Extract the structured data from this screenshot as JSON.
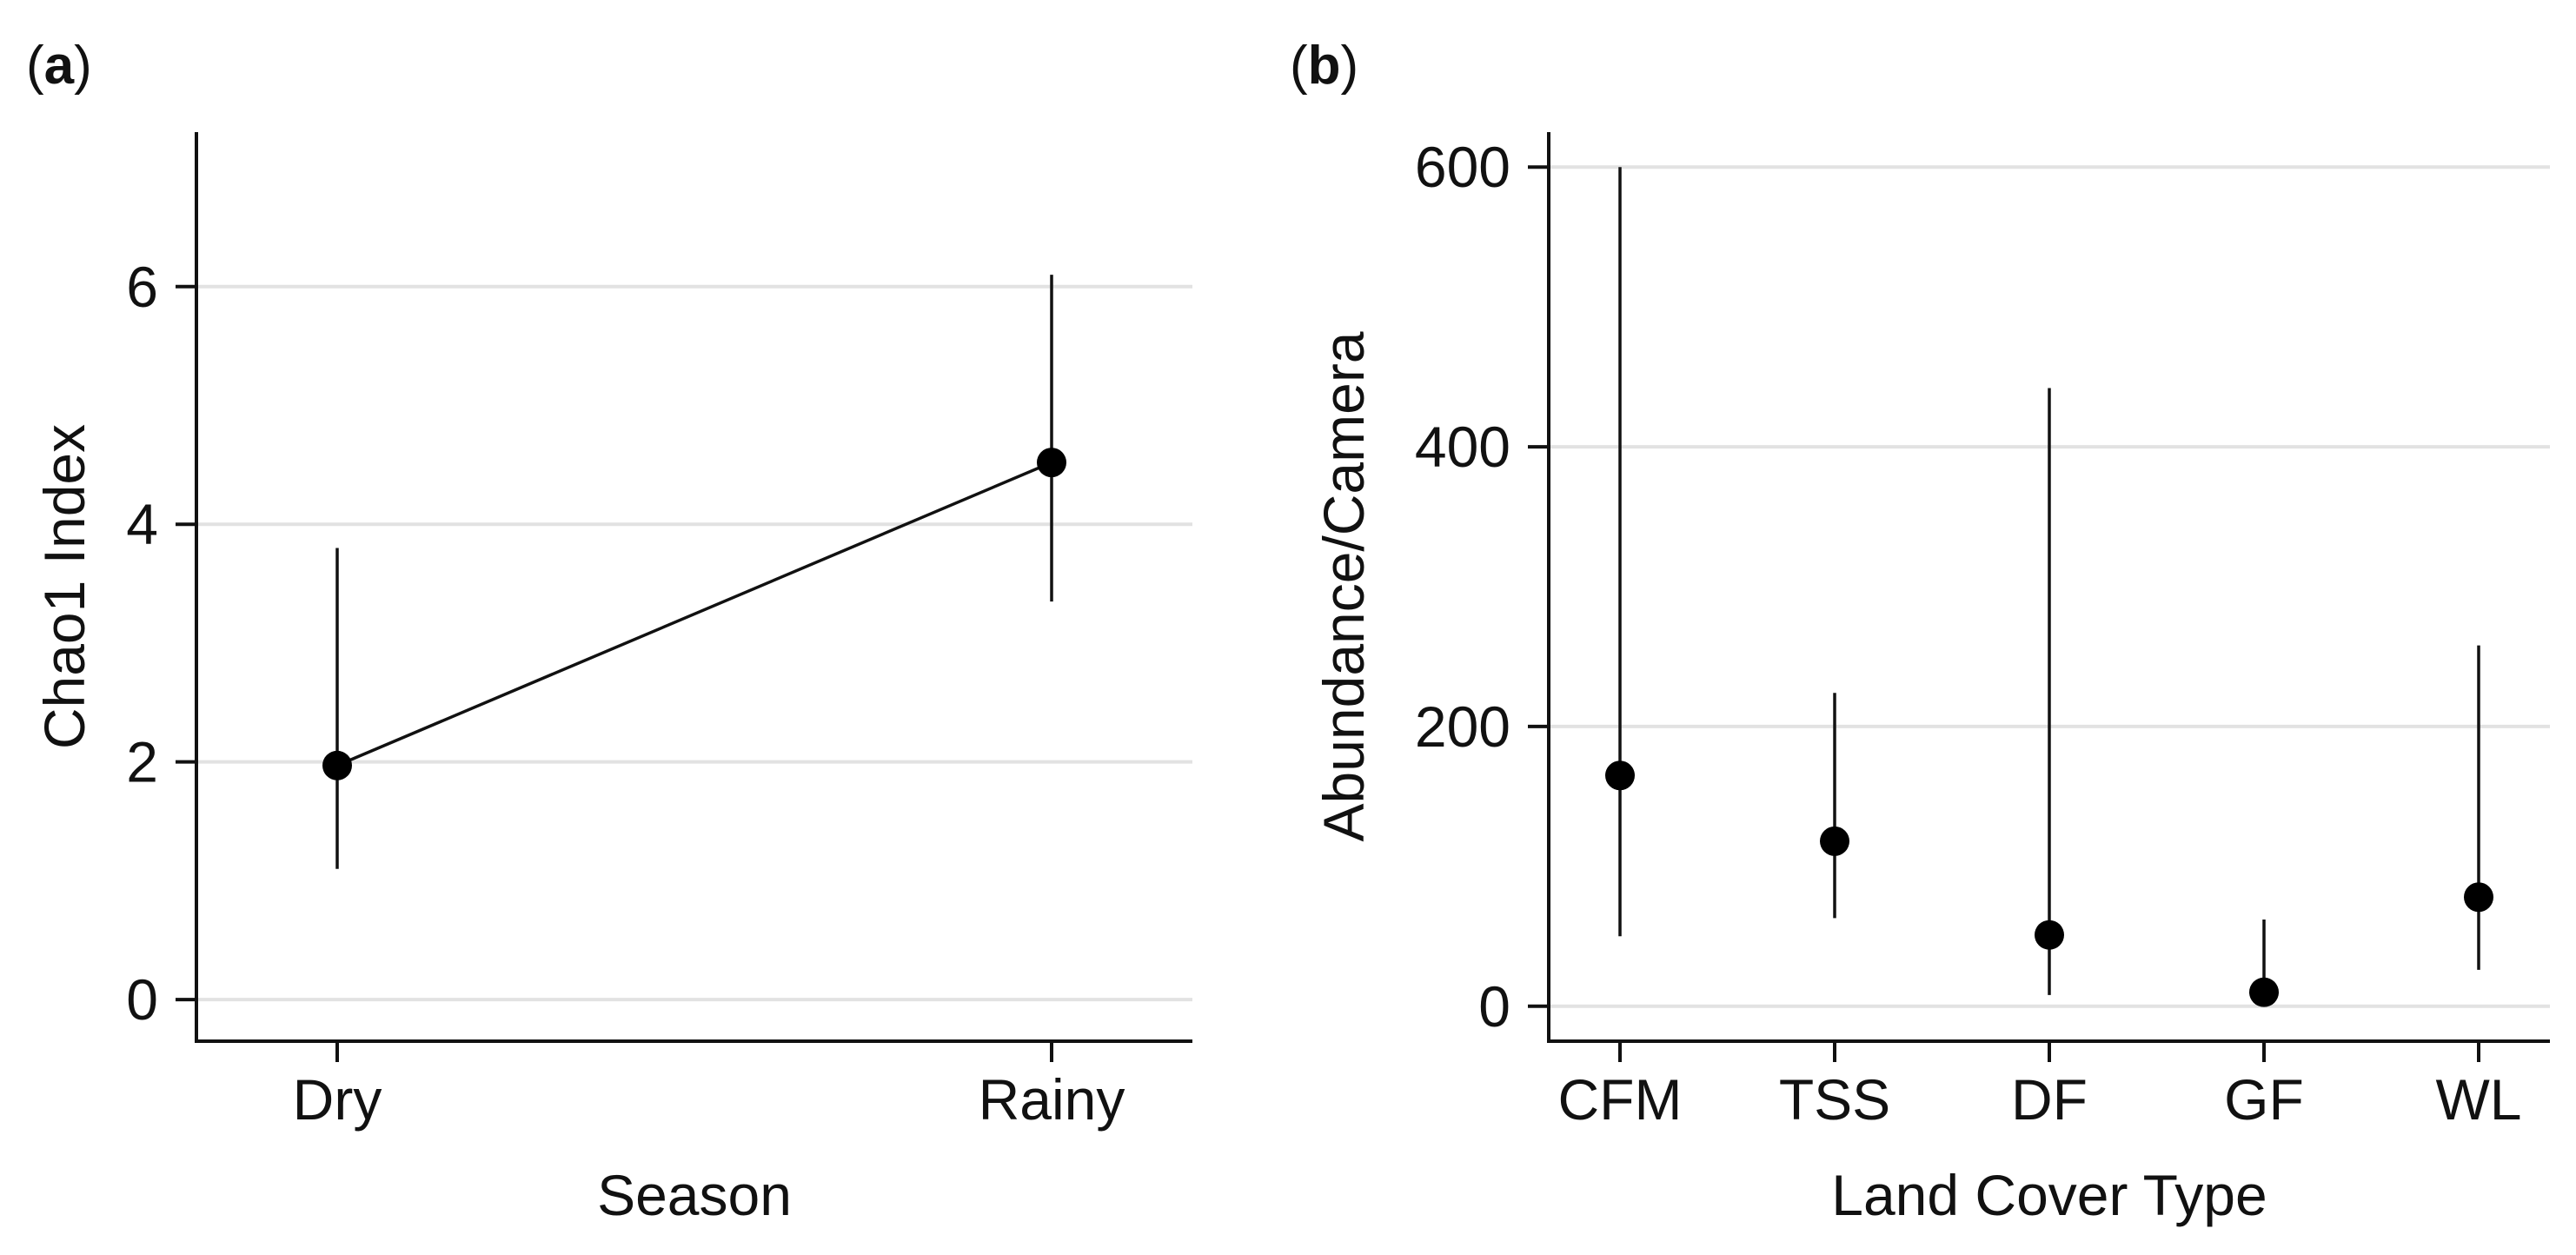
{
  "chart_data": [
    {
      "panel_label": "a",
      "type": "line",
      "title": "",
      "xlabel": "Season",
      "ylabel": "Chao1 Index",
      "categories": [
        "Dry",
        "Rainy"
      ],
      "values": [
        1.97,
        4.52
      ],
      "error_low": [
        1.1,
        3.35
      ],
      "error_high": [
        3.8,
        6.1
      ],
      "ylim": [
        -0.35,
        7.3
      ],
      "yticks": [
        0,
        2,
        4,
        6
      ],
      "grid": true,
      "connected": true
    },
    {
      "panel_label": "b",
      "type": "scatter",
      "title": "",
      "xlabel": "Land Cover Type",
      "ylabel": "Abundance/Camera",
      "categories": [
        "CFM",
        "TSS",
        "DF",
        "GF",
        "WL"
      ],
      "values": [
        165,
        118,
        51,
        10,
        78
      ],
      "error_low": [
        50,
        63,
        8,
        0,
        26
      ],
      "error_high": [
        600,
        224,
        442,
        62,
        258
      ],
      "ylim": [
        -25,
        625
      ],
      "yticks": [
        0,
        200,
        400,
        600
      ],
      "grid": true,
      "connected": false
    }
  ]
}
